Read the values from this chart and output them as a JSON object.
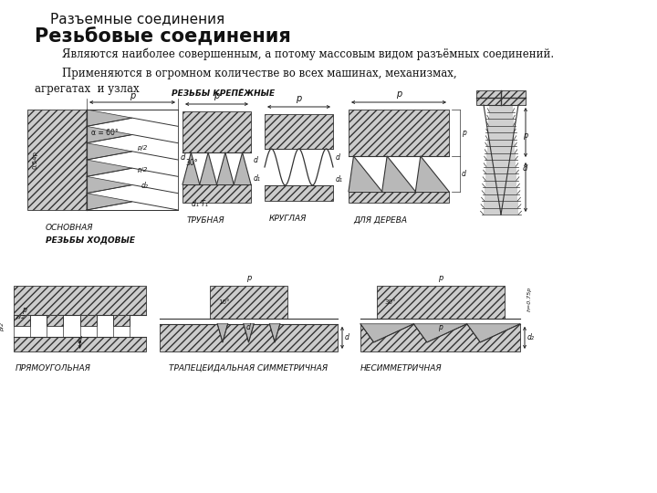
{
  "background_color": "#ffffff",
  "title1": "Разъемные соединения",
  "title2": "Резьбовые соединения",
  "para1": "        Являются наиболее совершенным, а потому массовым видом разъёмных соединений.",
  "para2": "        Применяются в огромном количестве во всех машинах, механизмах,\nагрегатах  и узлах",
  "label_krepezh": "РЕЗЬБЫ КРЕПЁЖНЫЕ",
  "label_hod": "РЕЗЬБЫ ХОДОВЫЕ",
  "label_osnovnaya": "ОСНОВНАЯ",
  "label_trubnaya": "ТРУБНАЯ",
  "label_kruglaya": "КРУГЛАЯ",
  "label_dlyadereva": "ДЛЯ ДЕРЕВА",
  "label_pryam": "ПРЯМОУГОЛЬНАЯ",
  "label_trap": "ТРАПЕЦЕИДАЛЬНАЯ СИММЕТРИЧНАЯ",
  "label_nesim": "НЕСИММЕТРИЧНАЯ",
  "label_dl": "d₁ T₁",
  "fig_width": 7.2,
  "fig_height": 5.4,
  "text_color": "#111111",
  "hatch_lw": 0.4
}
